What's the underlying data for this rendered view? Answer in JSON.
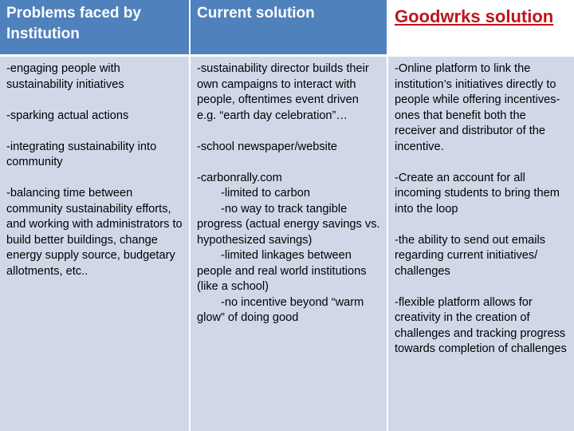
{
  "headers": {
    "problems": "Problems faced by Institution",
    "current": "Current solution",
    "goodwrks": "Goodwrks solution"
  },
  "colors": {
    "header_bg": "#4f81bd",
    "header_text": "#ffffff",
    "highlight_text": "#c0141c",
    "cell_bg": "#d0d8e8"
  },
  "problems": [
    "-engaging people with sustainability initiatives",
    "-sparking actual actions",
    "-integrating sustainability into community",
    "-balancing time between community sustainability efforts, and working with administrators to build better buildings, change energy supply source, budgetary allotments, etc.."
  ],
  "current": {
    "p1": "-sustainability director builds their own campaigns to interact with people, oftentimes event driven e.g. “earth day celebration”…",
    "p2": "-school newspaper/website",
    "p3_head": "-carbonrally.com",
    "p3_sub": [
      "-limited to carbon",
      "-no way to track tangible progress (actual energy savings vs. hypothesized savings)",
      "-limited linkages between people and real world institutions (like a school)",
      "-no incentive beyond “warm glow” of doing good"
    ]
  },
  "goodwrks": [
    "-Online platform to link the institution’s initiatives directly to people while offering incentives- ones that benefit both the receiver and distributor of the incentive.",
    "-Create an account for all incoming students to bring them into the loop",
    "-the ability to send out emails regarding current initiatives/ challenges",
    "-flexible platform allows for creativity in the creation of challenges and tracking progress towards completion of challenges"
  ]
}
